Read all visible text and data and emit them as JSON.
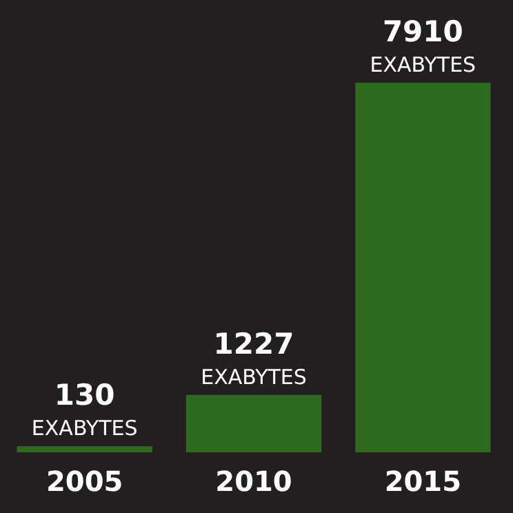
{
  "chart_data": {
    "type": "bar",
    "categories": [
      "2005",
      "2010",
      "2015"
    ],
    "values": [
      130,
      1227,
      7910
    ],
    "value_labels": [
      "130 EXABYTES",
      "1227 EXABYTES",
      "7910 EXABYTES"
    ],
    "color": "#2e6b1c"
  }
}
